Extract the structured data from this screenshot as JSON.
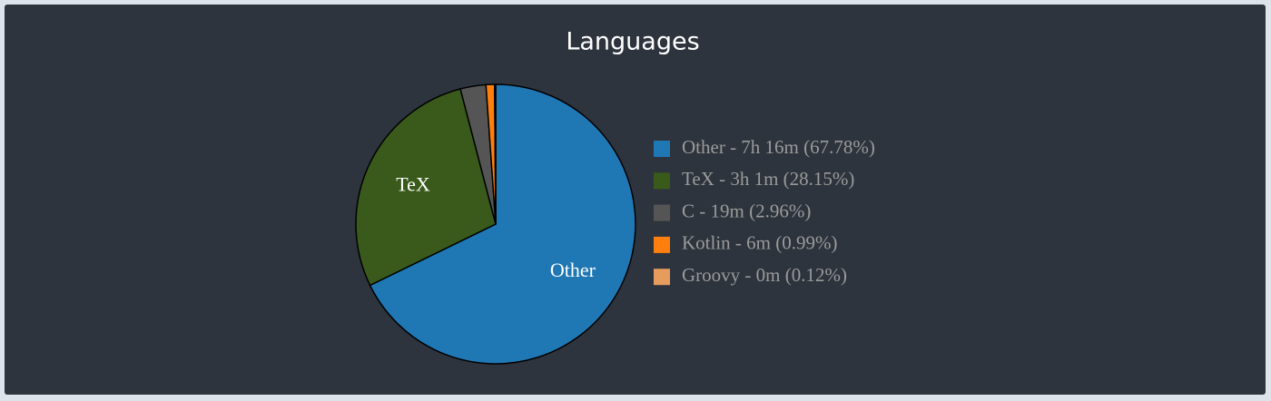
{
  "chart_data": {
    "type": "pie",
    "title": "Languages",
    "categories": [
      "Other",
      "TeX",
      "C",
      "Kotlin",
      "Groovy"
    ],
    "values": [
      67.78,
      28.15,
      2.96,
      0.99,
      0.12
    ],
    "legend_labels": [
      "Other - 7h 16m (67.78%)",
      "TeX - 3h 1m (28.15%)",
      "C - 19m (2.96%)",
      "Kotlin - 6m (0.99%)",
      "Groovy - 0m (0.12%)"
    ],
    "colors": [
      "#1f77b4",
      "#3a5a1b",
      "#555555",
      "#ff7f0e",
      "#e59c5c"
    ],
    "legend": "right"
  }
}
